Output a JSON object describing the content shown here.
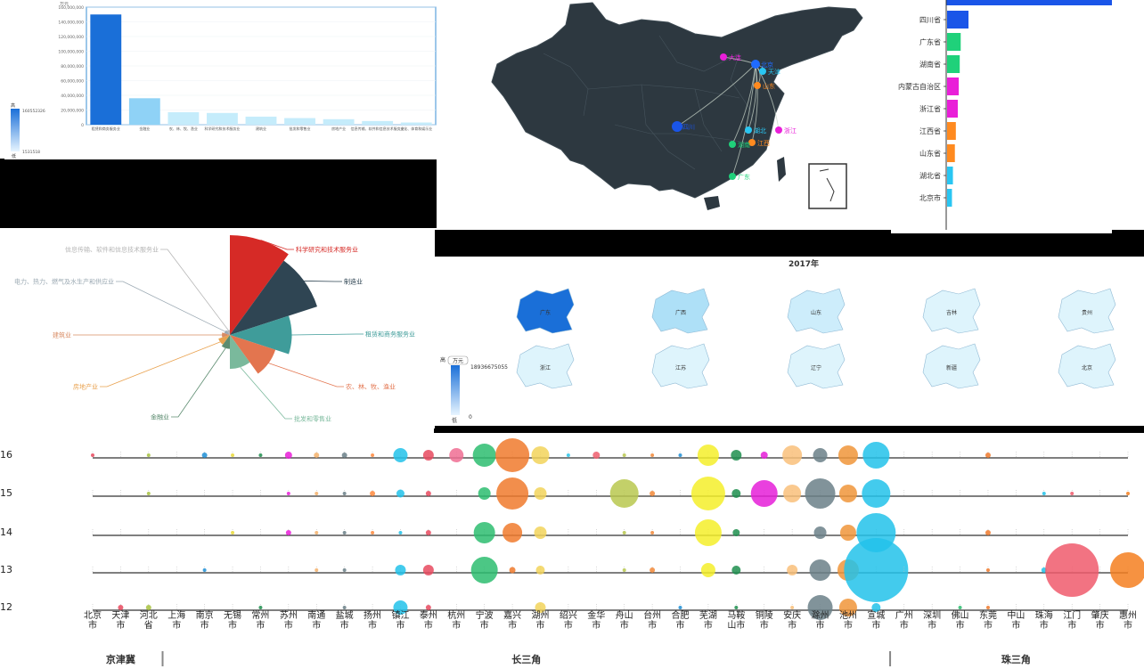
{
  "bar_panel": {
    "unit": "万元",
    "visual_map": {
      "max": "160552326",
      "min": "1531518",
      "high": "高",
      "low": "低"
    },
    "chart_data": {
      "type": "bar",
      "categories": [
        "租赁和商务服务业",
        "金融业",
        "农、林、牧、渔业",
        "科学研究和技术服务业",
        "建筑业",
        "批发和零售业",
        "房地产业",
        "信息传输、软件和信息技术服务业",
        "文化、体育和娱乐业"
      ],
      "values": [
        150000000,
        36000000,
        17000000,
        16000000,
        11000000,
        9000000,
        7500000,
        5000000,
        3000000
      ],
      "y_ticks": [
        "0",
        "20,000,000",
        "40,000,000",
        "60,000,000",
        "80,000,000",
        "100,000,000",
        "120,000,000",
        "140,000,000",
        "160,000,000"
      ],
      "ylim": [
        0,
        160000000
      ]
    }
  },
  "map_panel": {
    "cities": [
      {
        "name": "大连",
        "color": "#e91fd8"
      },
      {
        "name": "北京",
        "color": "#1f6bff"
      },
      {
        "name": "天津",
        "color": "#29c6f2"
      },
      {
        "name": "山东",
        "color": "#ff8a1f"
      },
      {
        "name": "四川",
        "color": "#1a55e8"
      },
      {
        "name": "湖北",
        "color": "#29c6f2"
      },
      {
        "name": "浙江",
        "color": "#e91fd8"
      },
      {
        "name": "江西",
        "color": "#ff8a1f"
      },
      {
        "name": "湖南",
        "color": "#1fd17a"
      },
      {
        "name": "广东",
        "color": "#1fd17a"
      }
    ]
  },
  "rank_panel": {
    "chart_data": {
      "type": "bar",
      "categories": [
        "四川省",
        "广东省",
        "湖南省",
        "内蒙古自治区",
        "浙江省",
        "江西省",
        "山东省",
        "湖北省",
        "北京市"
      ],
      "values": [
        22,
        14,
        13,
        12,
        11,
        9,
        8,
        6,
        5
      ],
      "colors": [
        "#1a55e8",
        "#1fd17a",
        "#1fd17a",
        "#e91fd8",
        "#e91fd8",
        "#ff8a1f",
        "#ff8a1f",
        "#29c6f2",
        "#29c6f2"
      ]
    }
  },
  "rose_panel": {
    "chart_data": {
      "type": "pie",
      "labels": [
        "科学研究和技术服务业",
        "制造业",
        "租赁和商务服务业",
        "农、林、牧、渔业",
        "批发和零售业",
        "金融业",
        "房地产业",
        "建筑业",
        "电力、热力、燃气及水生产和供应业",
        "信息传输、软件和信息技术服务业"
      ],
      "values": [
        100,
        92,
        62,
        48,
        34,
        14,
        12,
        8,
        6,
        5
      ],
      "colors": [
        "#d62a26",
        "#2f4553",
        "#3f9c9a",
        "#e3754f",
        "#7ab99c",
        "#5c8c70",
        "#e9a24f",
        "#d88b63",
        "#9aa8b2",
        "#b5b5b5"
      ]
    }
  },
  "province_panel": {
    "title": "2017年",
    "unit": "万元",
    "visual_map": {
      "max": "18936675055",
      "min": "0",
      "high": "高",
      "low": "低"
    },
    "provinces": [
      {
        "name": "广东",
        "level": 1.0
      },
      {
        "name": "广西",
        "level": 0.3
      },
      {
        "name": "山东",
        "level": 0.15
      },
      {
        "name": "吉林",
        "level": 0.1
      },
      {
        "name": "贵州",
        "level": 0.1
      },
      {
        "name": "浙江",
        "level": 0.1
      },
      {
        "name": "江苏",
        "level": 0.1
      },
      {
        "name": "辽宁",
        "level": 0.08
      },
      {
        "name": "新疆",
        "level": 0.08
      },
      {
        "name": "北京",
        "level": 0.05
      }
    ]
  },
  "bubble_panel": {
    "chart_data": {
      "type": "scatter",
      "cities": [
        "北京市",
        "天津市",
        "河北省",
        "上海市",
        "南京市",
        "无锡市",
        "常州市",
        "苏州市",
        "南通市",
        "盐城市",
        "扬州市",
        "镇江市",
        "泰州市",
        "杭州市",
        "宁波市",
        "嘉兴市",
        "湖州市",
        "绍兴市",
        "金华市",
        "舟山市",
        "台州市",
        "合肥市",
        "芜湖市",
        "马鞍山市",
        "铜陵市",
        "安庆市",
        "滁州市",
        "池州市",
        "宣城市",
        "广州市",
        "深圳市",
        "佛山市",
        "东莞市",
        "中山市",
        "珠海市",
        "江门市",
        "肇庆市",
        "惠州市"
      ],
      "colors": [
        "#e84a5f",
        "#e84a5f",
        "#a8c240",
        "#2f4553",
        "#1f8fd6",
        "#eada3a",
        "#1f8f4f",
        "#e91fd8",
        "#f5b26b",
        "#6b8088",
        "#ff8a3d",
        "#22c2ea",
        "#e84a5f",
        "#f06d93",
        "#2dbd70",
        "#f07a2d",
        "#f2d35a",
        "#2cc6ea",
        "#ee5f6f",
        "#b9c84f",
        "#f28a3a",
        "#1f8fd6",
        "#f4ee2a",
        "#1f8f4f",
        "#e51fd8",
        "#f9c07a",
        "#6b8088",
        "#f0953a",
        "#22c2ea",
        "#8da3b0",
        "#8da3b0",
        "#2dbd70",
        "#f07a2d",
        "#8da3b0",
        "#22c2ea",
        "#f05a6c",
        "#f06d93",
        "#f57f20"
      ],
      "series": [
        {
          "name": "2016",
          "values": [
            2,
            0,
            2,
            0,
            3,
            2,
            2,
            4,
            3,
            3,
            1,
            8,
            6,
            8,
            13,
            19,
            10,
            2,
            4,
            1,
            2,
            1,
            12,
            6,
            4,
            11,
            8,
            11,
            15,
            0,
            0,
            0,
            3,
            0,
            0,
            0,
            0,
            0
          ]
        },
        {
          "name": "2015",
          "values": [
            0,
            0,
            1.5,
            0,
            0,
            0,
            0,
            2,
            2,
            2,
            3,
            4.5,
            3,
            0,
            7,
            18,
            7,
            0,
            0,
            16,
            3,
            0,
            19,
            5,
            15,
            10,
            17,
            10,
            16,
            0,
            0,
            0,
            0,
            0,
            2,
            1,
            0,
            2
          ]
        },
        {
          "name": "2014",
          "values": [
            0,
            0,
            0,
            0,
            0,
            1,
            0,
            3,
            1,
            2,
            1,
            2,
            3,
            0,
            12,
            11,
            7,
            0,
            0,
            2,
            1,
            0,
            15,
            4,
            0,
            0,
            7,
            9,
            22,
            0,
            0,
            0,
            3,
            0,
            0,
            0,
            0,
            0
          ]
        },
        {
          "name": "2013",
          "values": [
            0,
            0,
            0,
            0,
            1,
            0,
            0,
            0,
            2,
            2,
            0,
            6,
            6,
            0,
            15,
            3.5,
            5,
            0,
            0,
            2,
            3,
            0,
            8,
            5,
            0,
            6,
            12,
            12,
            36,
            0,
            0,
            0,
            0.5,
            0,
            3,
            30,
            0,
            20
          ]
        },
        {
          "name": "2012",
          "values": [
            0,
            3,
            3,
            0,
            0,
            0,
            2,
            0,
            0,
            2,
            0,
            8,
            3,
            0,
            0,
            0,
            6,
            0,
            0,
            0,
            0,
            2,
            0,
            1,
            0,
            1,
            14,
            10,
            5,
            0,
            0,
            1.5,
            0.5,
            0,
            0,
            0,
            0,
            0
          ]
        }
      ],
      "row_labels": [
        "16",
        "15",
        "14",
        "13",
        "12"
      ],
      "groups": [
        {
          "name": "京津冀",
          "from": 0,
          "to": 2
        },
        {
          "name": "长三角",
          "from": 3,
          "to": 28
        },
        {
          "name": "珠三角",
          "from": 29,
          "to": 37
        }
      ]
    }
  }
}
